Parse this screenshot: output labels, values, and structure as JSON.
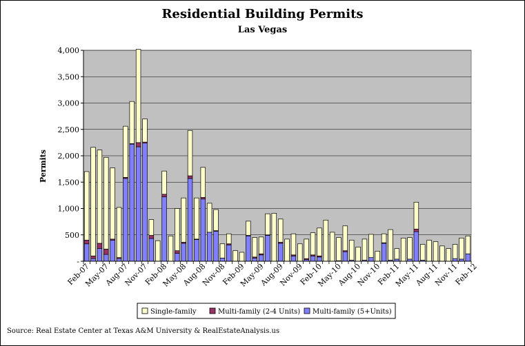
{
  "chart_data": {
    "type": "bar",
    "stacked": true,
    "title": "Residential Building Permits",
    "subtitle": "Las Vegas",
    "ylabel": "Permits",
    "xlabel": "",
    "ylim": [
      0,
      4000
    ],
    "yticks": [
      0,
      500,
      1000,
      1500,
      2000,
      2500,
      3000,
      3500,
      4000
    ],
    "ytick_labels": [
      "-",
      "500",
      "1,000",
      "1,500",
      "2,000",
      "2,500",
      "3,000",
      "3,500",
      "4,000"
    ],
    "xtick_labels": [
      {
        "index": 0,
        "label": "Feb-07"
      },
      {
        "index": 3,
        "label": "May-07"
      },
      {
        "index": 6,
        "label": "Aug-07"
      },
      {
        "index": 9,
        "label": "Nov-07"
      },
      {
        "index": 12,
        "label": "Feb-08"
      },
      {
        "index": 15,
        "label": "May-08"
      },
      {
        "index": 18,
        "label": "Aug-08"
      },
      {
        "index": 21,
        "label": "Nov-08"
      },
      {
        "index": 24,
        "label": "Feb-09"
      },
      {
        "index": 27,
        "label": "May-09"
      },
      {
        "index": 30,
        "label": "Aug-09"
      },
      {
        "index": 33,
        "label": "Nov-09"
      },
      {
        "index": 36,
        "label": "Feb-10"
      },
      {
        "index": 39,
        "label": "May-10"
      },
      {
        "index": 42,
        "label": "Aug-10"
      },
      {
        "index": 45,
        "label": "Nov-10"
      },
      {
        "index": 48,
        "label": "Feb-11"
      },
      {
        "index": 51,
        "label": "May-11"
      },
      {
        "index": 54,
        "label": "Aug-11"
      },
      {
        "index": 57,
        "label": "Nov-11"
      },
      {
        "index": 60,
        "label": "Feb-12"
      }
    ],
    "series": [
      {
        "name": "Multi-family (5+ Units)",
        "color": "#8080ff",
        "values": [
          330,
          50,
          240,
          130,
          400,
          50,
          1570,
          2220,
          2170,
          2240,
          430,
          0,
          1220,
          0,
          150,
          340,
          1570,
          410,
          1180,
          550,
          570,
          60,
          310,
          0,
          0,
          480,
          60,
          120,
          490,
          0,
          340,
          0,
          100,
          0,
          30,
          100,
          80,
          0,
          0,
          0,
          180,
          20,
          0,
          20,
          70,
          0,
          340,
          20,
          40,
          0,
          40,
          560,
          20,
          0,
          0,
          0,
          0,
          50,
          40,
          140
        ]
      },
      {
        "name": "Multi-family (2-4 Units)",
        "color": "#993366",
        "values": [
          70,
          50,
          100,
          100,
          20,
          20,
          20,
          10,
          80,
          20,
          60,
          0,
          50,
          0,
          50,
          20,
          50,
          10,
          30,
          0,
          10,
          0,
          20,
          0,
          0,
          10,
          20,
          20,
          10,
          0,
          20,
          0,
          20,
          0,
          20,
          20,
          20,
          0,
          0,
          10,
          20,
          0,
          0,
          0,
          0,
          0,
          10,
          0,
          0,
          0,
          0,
          50,
          0,
          0,
          0,
          0,
          0,
          0,
          0,
          0
        ]
      },
      {
        "name": "Single-family",
        "color": "#ffffcc",
        "values": [
          1300,
          2060,
          1770,
          1740,
          1350,
          950,
          970,
          800,
          1770,
          440,
          300,
          390,
          440,
          480,
          800,
          840,
          860,
          780,
          570,
          550,
          400,
          270,
          190,
          200,
          170,
          270,
          370,
          320,
          400,
          910,
          440,
          420,
          400,
          330,
          370,
          420,
          530,
          780,
          550,
          440,
          470,
          380,
          270,
          400,
          440,
          190,
          170,
          580,
          200,
          440,
          410,
          510,
          300,
          400,
          370,
          290,
          240,
          270,
          400,
          340
        ]
      }
    ],
    "legend": {
      "position": "bottom",
      "items": [
        "Single-family",
        "Multi-family (2-4 Units)",
        "Multi-family (5+Units)"
      ]
    },
    "plot_background": "#c0c0c0",
    "grid": true
  },
  "source_text": "Source: Real Estate Center at Texas A&M University & RealEstateAnalysis.us"
}
